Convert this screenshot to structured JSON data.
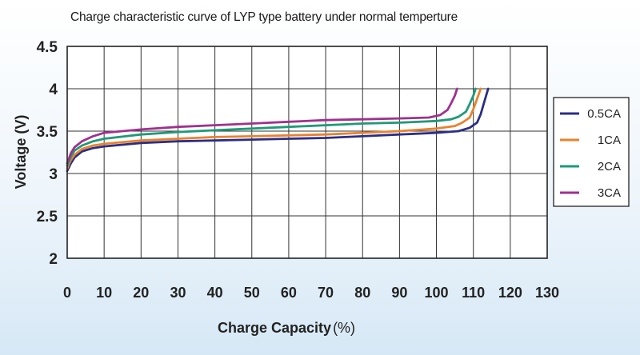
{
  "chart_data": {
    "type": "line",
    "title": "Charge characteristic curve of LYP type battery under normal temperture",
    "xlabel": "Charge Capacity",
    "xlabel_unit": "(%)",
    "ylabel": "Voltage (V)",
    "xlim": [
      0,
      130
    ],
    "ylim": [
      2,
      4.5
    ],
    "x_ticks": [
      "0",
      "10",
      "20",
      "30",
      "40",
      "50",
      "60",
      "70",
      "80",
      "90",
      "100",
      "110",
      "120",
      "130"
    ],
    "y_ticks": [
      "2",
      "2.5",
      "3",
      "3.5",
      "4",
      "4.5"
    ],
    "grid": true,
    "legend_position": "right",
    "series": [
      {
        "name": "0.5CA",
        "color": "#2b2e86",
        "points": [
          [
            0,
            3.03
          ],
          [
            1,
            3.12
          ],
          [
            2,
            3.19
          ],
          [
            4,
            3.26
          ],
          [
            7,
            3.3
          ],
          [
            10,
            3.32
          ],
          [
            20,
            3.36
          ],
          [
            30,
            3.38
          ],
          [
            40,
            3.39
          ],
          [
            50,
            3.4
          ],
          [
            60,
            3.41
          ],
          [
            70,
            3.42
          ],
          [
            80,
            3.44
          ],
          [
            90,
            3.46
          ],
          [
            100,
            3.48
          ],
          [
            106,
            3.5
          ],
          [
            109,
            3.54
          ],
          [
            111,
            3.6
          ],
          [
            112,
            3.7
          ],
          [
            113,
            3.85
          ],
          [
            114,
            4.0
          ]
        ]
      },
      {
        "name": "1CA",
        "color": "#e9822d",
        "points": [
          [
            0,
            3.06
          ],
          [
            1,
            3.16
          ],
          [
            2,
            3.22
          ],
          [
            4,
            3.29
          ],
          [
            7,
            3.33
          ],
          [
            10,
            3.35
          ],
          [
            20,
            3.39
          ],
          [
            30,
            3.41
          ],
          [
            40,
            3.43
          ],
          [
            50,
            3.44
          ],
          [
            60,
            3.45
          ],
          [
            70,
            3.46
          ],
          [
            80,
            3.48
          ],
          [
            90,
            3.5
          ],
          [
            100,
            3.53
          ],
          [
            105,
            3.56
          ],
          [
            107,
            3.6
          ],
          [
            109,
            3.66
          ],
          [
            110,
            3.76
          ],
          [
            111,
            3.88
          ],
          [
            112,
            4.0
          ]
        ]
      },
      {
        "name": "2CA",
        "color": "#1e9a78",
        "points": [
          [
            0,
            3.09
          ],
          [
            1,
            3.2
          ],
          [
            2,
            3.27
          ],
          [
            4,
            3.33
          ],
          [
            7,
            3.38
          ],
          [
            10,
            3.41
          ],
          [
            20,
            3.46
          ],
          [
            30,
            3.49
          ],
          [
            40,
            3.51
          ],
          [
            50,
            3.53
          ],
          [
            60,
            3.55
          ],
          [
            70,
            3.57
          ],
          [
            80,
            3.59
          ],
          [
            90,
            3.6
          ],
          [
            100,
            3.62
          ],
          [
            104,
            3.64
          ],
          [
            106,
            3.67
          ],
          [
            108,
            3.73
          ],
          [
            109,
            3.82
          ],
          [
            110,
            3.92
          ],
          [
            110.6,
            4.0
          ]
        ]
      },
      {
        "name": "3CA",
        "color": "#a0308f",
        "points": [
          [
            0,
            3.12
          ],
          [
            1,
            3.24
          ],
          [
            2,
            3.31
          ],
          [
            4,
            3.38
          ],
          [
            7,
            3.44
          ],
          [
            10,
            3.48
          ],
          [
            20,
            3.52
          ],
          [
            30,
            3.55
          ],
          [
            40,
            3.57
          ],
          [
            50,
            3.59
          ],
          [
            60,
            3.61
          ],
          [
            70,
            3.63
          ],
          [
            80,
            3.64
          ],
          [
            90,
            3.65
          ],
          [
            98,
            3.66
          ],
          [
            101,
            3.69
          ],
          [
            103,
            3.75
          ],
          [
            104,
            3.83
          ],
          [
            105,
            3.92
          ],
          [
            105.6,
            4.0
          ]
        ]
      }
    ]
  }
}
